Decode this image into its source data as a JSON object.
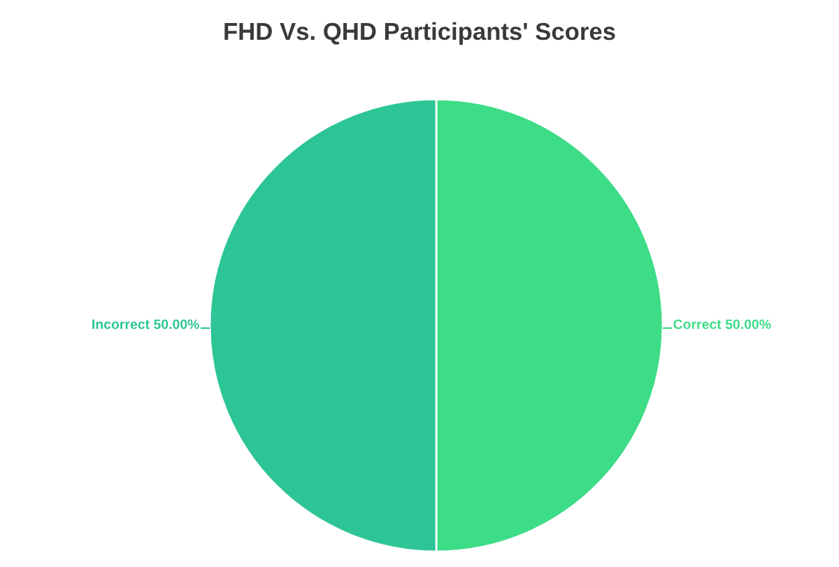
{
  "chart_data": {
    "type": "pie",
    "title": "FHD Vs. QHD Participants' Scores",
    "categories": [
      "Correct",
      "Incorrect"
    ],
    "values": [
      50,
      50
    ],
    "colors": [
      "#3ddc86",
      "#2dc596"
    ],
    "value_labels": [
      "50.00%",
      "50.00%"
    ],
    "legend": false
  }
}
